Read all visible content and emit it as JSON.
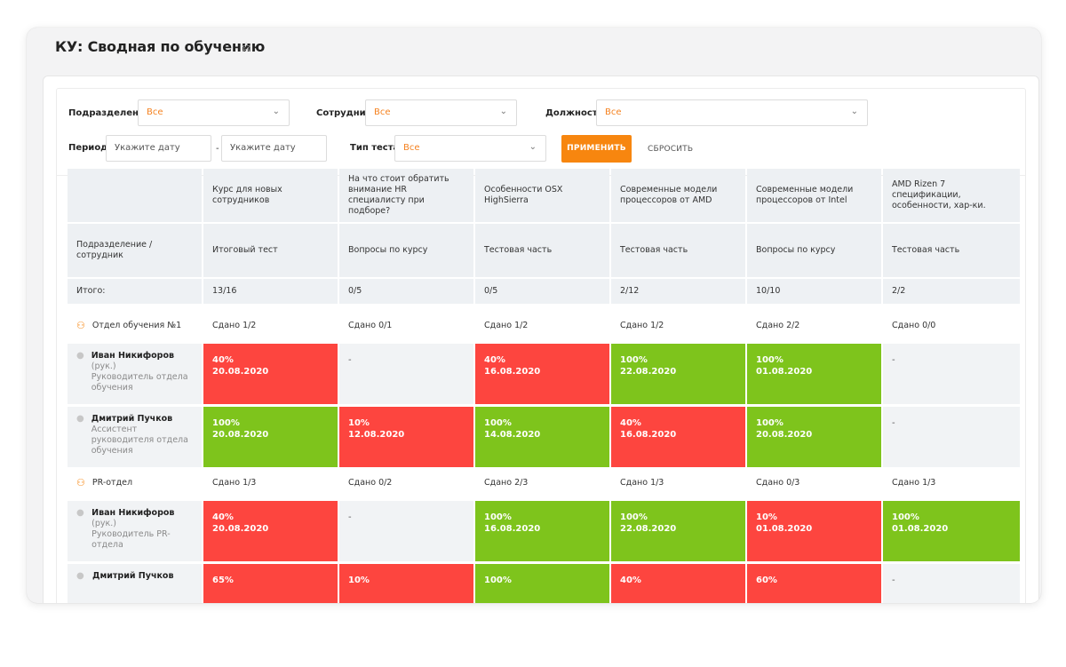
{
  "page": {
    "title": "КУ: Сводная по обучению",
    "star_icon": "star-outline-icon"
  },
  "filters": {
    "department_label": "Подразделение",
    "department_value": "Все",
    "employee_label": "Сотрудник",
    "employee_value": "Все",
    "position_label": "Должность",
    "position_value": "Все",
    "period_label": "Период",
    "date_from_placeholder": "Укажите дату",
    "date_separator": "-",
    "date_to_placeholder": "Укажите дату",
    "test_type_label": "Тип теста",
    "test_type_value": "Все",
    "apply_label": "ПРИМЕНИТЬ",
    "reset_label": "СБРОСИТЬ",
    "chevron_icon": "chevron-down-icon"
  },
  "table": {
    "corner_label": "Подразделение / сотрудник",
    "total_label": "Итого:",
    "columns": [
      {
        "course": "Курс для новых сотрудников",
        "test": "Итоговый тест",
        "total": "13/16"
      },
      {
        "course": "На что стоит обратить внимание HR специалисту при подборе?",
        "test": "Вопросы по курсу",
        "total": "0/5"
      },
      {
        "course": "Особенности OSX HighSierra",
        "test": "Тестовая часть",
        "total": "0/5"
      },
      {
        "course": "Современные модели процессоров от AMD",
        "test": "Тестовая часть",
        "total": "2/12"
      },
      {
        "course": "Современные модели процессоров от Intel",
        "test": "Вопросы по курсу",
        "total": "10/10"
      },
      {
        "course": "AMD Rizen 7 спецификации, особенности, хар-ки.",
        "test": "Тестовая часть",
        "total": "2/2"
      }
    ],
    "groups": [
      {
        "name": "Отдел обучения №1",
        "summary": [
          "Сдано 1/2",
          "Сдано 0/1",
          "Сдано 1/2",
          "Сдано 1/2",
          "Сдано 2/2",
          "Сдано 0/0"
        ],
        "employees": [
          {
            "name": "Иван Никифоров",
            "suffix": " (рук.)",
            "role": "Руководитель отдела обучения",
            "results": [
              {
                "status": "fail",
                "percent": "40%",
                "date": "20.08.2020"
              },
              {
                "status": "none",
                "percent": "-",
                "date": ""
              },
              {
                "status": "fail",
                "percent": "40%",
                "date": "16.08.2020"
              },
              {
                "status": "pass",
                "percent": "100%",
                "date": "22.08.2020"
              },
              {
                "status": "pass",
                "percent": "100%",
                "date": "01.08.2020"
              },
              {
                "status": "none",
                "percent": "-",
                "date": ""
              }
            ]
          },
          {
            "name": "Дмитрий Пучков",
            "suffix": "",
            "role": "Ассистент руководителя отдела обучения",
            "results": [
              {
                "status": "pass",
                "percent": "100%",
                "date": "20.08.2020"
              },
              {
                "status": "fail",
                "percent": "10%",
                "date": "12.08.2020"
              },
              {
                "status": "pass",
                "percent": "100%",
                "date": "14.08.2020"
              },
              {
                "status": "fail",
                "percent": "40%",
                "date": "16.08.2020"
              },
              {
                "status": "pass",
                "percent": "100%",
                "date": "20.08.2020"
              },
              {
                "status": "none",
                "percent": "-",
                "date": ""
              }
            ]
          }
        ]
      },
      {
        "name": "PR-отдел",
        "summary": [
          "Сдано 1/3",
          "Сдано 0/2",
          "Сдано 2/3",
          "Сдано 1/3",
          "Сдано 0/3",
          "Сдано 1/3"
        ],
        "employees": [
          {
            "name": "Иван Никифоров",
            "suffix": " (рук.)",
            "role": "Руководитель PR-отдела",
            "results": [
              {
                "status": "fail",
                "percent": "40%",
                "date": "20.08.2020"
              },
              {
                "status": "none",
                "percent": "-",
                "date": ""
              },
              {
                "status": "pass",
                "percent": "100%",
                "date": "16.08.2020"
              },
              {
                "status": "pass",
                "percent": "100%",
                "date": "22.08.2020"
              },
              {
                "status": "fail",
                "percent": "10%",
                "date": "01.08.2020"
              },
              {
                "status": "pass",
                "percent": "100%",
                "date": "01.08.2020"
              }
            ]
          },
          {
            "name": "Дмитрий Пучков",
            "suffix": "",
            "role": "",
            "results": [
              {
                "status": "fail",
                "percent": "65%",
                "date": ""
              },
              {
                "status": "fail",
                "percent": "10%",
                "date": ""
              },
              {
                "status": "pass",
                "percent": "100%",
                "date": ""
              },
              {
                "status": "fail",
                "percent": "40%",
                "date": ""
              },
              {
                "status": "fail",
                "percent": "60%",
                "date": ""
              },
              {
                "status": "none",
                "percent": "-",
                "date": ""
              }
            ]
          }
        ]
      }
    ]
  },
  "colors": {
    "fail": "#fd453f",
    "pass": "#7ec41c",
    "accent": "#f7860f"
  }
}
